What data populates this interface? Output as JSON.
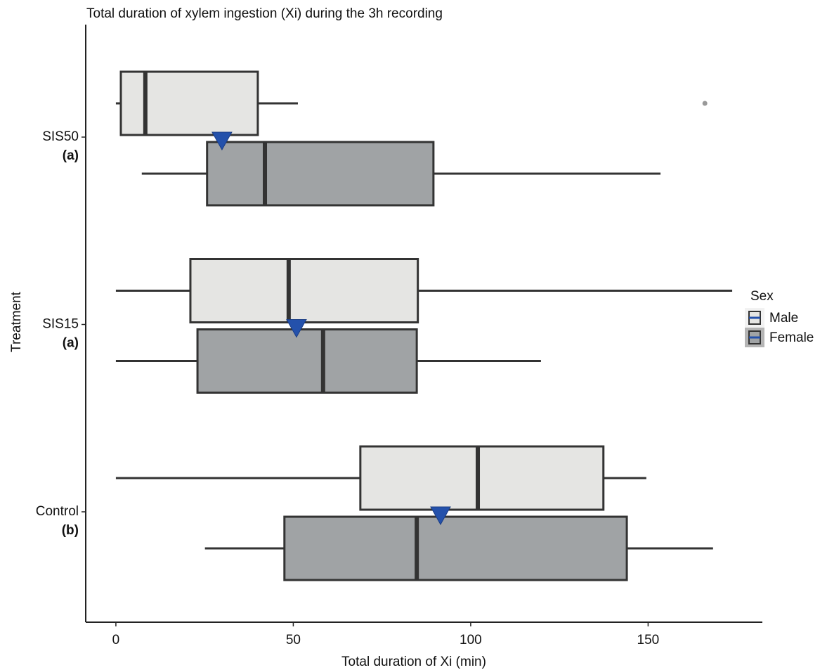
{
  "chart_data": {
    "type": "boxplot",
    "orientation": "horizontal",
    "title": "Total duration of xylem ingestion (Xi) during the 3h recording",
    "x_label": "Total duration of Xi (min)",
    "y_label": "Treatment",
    "categories": [
      "SIS50",
      "SIS15",
      "Control"
    ],
    "group_labels": [
      "(a)",
      "(a)",
      "(b)"
    ],
    "xlim": [
      -8.5,
      182.2
    ],
    "xticks": [
      0,
      50,
      100,
      150
    ],
    "legend_title": "Sex",
    "legend_position": "right",
    "series": [
      {
        "name": "Male",
        "color": "#e5e5e3",
        "low": [
          0,
          0,
          0
        ],
        "q1": [
          1.4,
          21,
          68.9
        ],
        "median": [
          8.3,
          48.7,
          102
        ],
        "q3": [
          40,
          85.1,
          137.4
        ],
        "high": [
          51.3,
          173.7,
          149.5
        ],
        "outliers": [
          [
            166
          ],
          [],
          []
        ]
      },
      {
        "name": "Female",
        "color": "#a0a3a5",
        "low": [
          7.3,
          0,
          25.1
        ],
        "q1": [
          25.7,
          23,
          47.5
        ],
        "median": [
          42,
          58.4,
          84.8
        ],
        "q3": [
          89.5,
          84.8,
          144
        ],
        "high": [
          153.5,
          119.8,
          168.3
        ],
        "outliers": [
          [],
          [],
          []
        ]
      }
    ],
    "means": {
      "color": "#2451ab",
      "values": [
        29.9,
        50.9,
        91.5
      ]
    }
  }
}
